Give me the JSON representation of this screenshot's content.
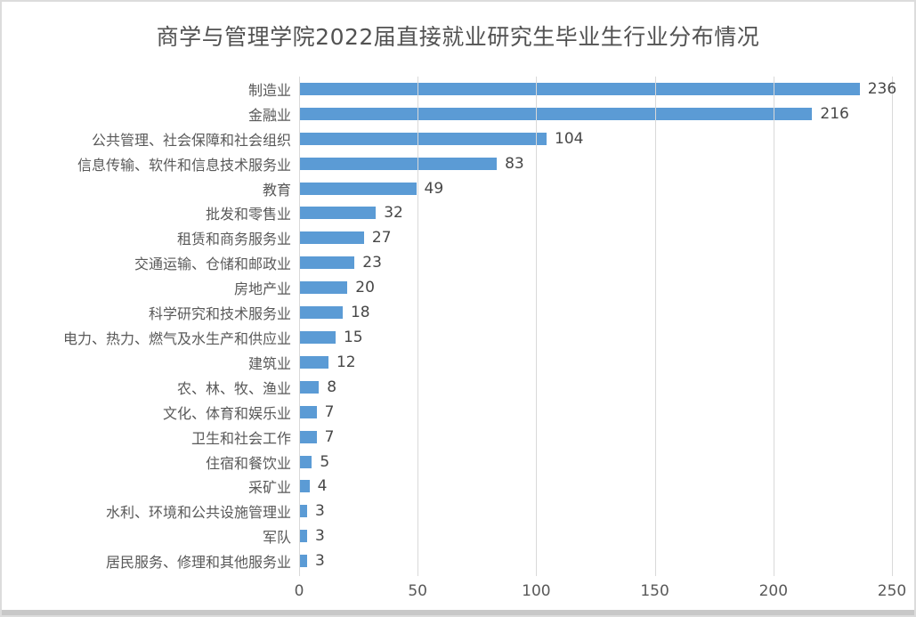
{
  "window": {
    "background": "#FFFFFF",
    "border_color": "#DCDCDC",
    "bottom_strip_color": "#C8C8C8"
  },
  "chart_data": {
    "type": "bar",
    "orientation": "horizontal",
    "title": "商学与管理学院2022届直接就业研究生毕业生行业分布情况",
    "categories": [
      "制造业",
      "金融业",
      "公共管理、社会保障和社会组织",
      "信息传输、软件和信息技术服务业",
      "教育",
      "批发和零售业",
      "租赁和商务服务业",
      "交通运输、仓储和邮政业",
      "房地产业",
      "科学研究和技术服务业",
      "电力、热力、燃气及水生产和供应业",
      "建筑业",
      "农、林、牧、渔业",
      "文化、体育和娱乐业",
      "卫生和社会工作",
      "住宿和餐饮业",
      "采矿业",
      "水利、环境和公共设施管理业",
      "军队",
      "居民服务、修理和其他服务业"
    ],
    "values": [
      236,
      216,
      104,
      83,
      49,
      32,
      27,
      23,
      20,
      18,
      15,
      12,
      8,
      7,
      7,
      5,
      4,
      3,
      3,
      3
    ],
    "xlim": [
      0,
      250
    ],
    "x_ticks": [
      0,
      50,
      100,
      150,
      200,
      250
    ],
    "grid": "vertical-major",
    "legend": "none",
    "data_labels": "outside-end",
    "bar_color": "#5B9BD5",
    "gridline_color": "#D9D9D9",
    "axis_text_color": "#595959",
    "category_text_color": "#595959",
    "value_label_color": "#474747",
    "title_color": "#525252"
  }
}
